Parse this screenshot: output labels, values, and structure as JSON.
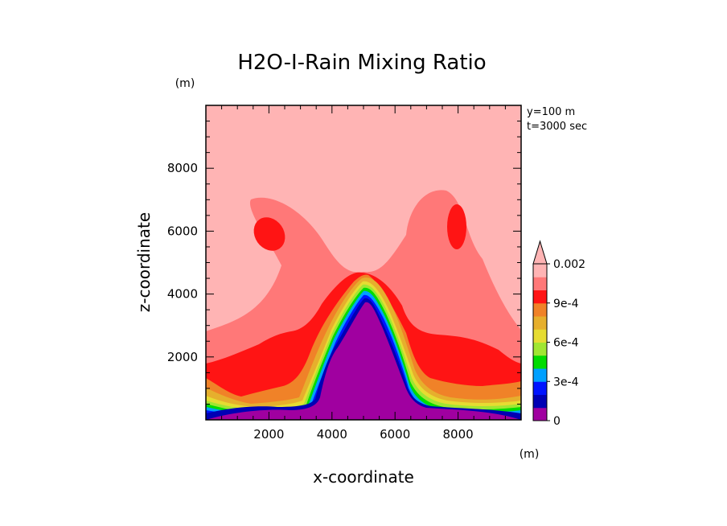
{
  "chart_data": {
    "type": "heatmap",
    "title": "H2O-I-Rain Mixing Ratio",
    "xlabel": "x-coordinate",
    "ylabel": "z-coordinate",
    "x_unit": "(m)",
    "y_unit": "(m)",
    "xlim": [
      0,
      10000
    ],
    "ylim": [
      0,
      10000
    ],
    "x_ticks": [
      2000,
      4000,
      6000,
      8000
    ],
    "y_ticks": [
      2000,
      4000,
      6000,
      8000
    ],
    "x_tick_labels": [
      "2000",
      "4000",
      "6000",
      "8000"
    ],
    "y_tick_labels": [
      "2000",
      "4000",
      "6000",
      "8000"
    ],
    "annotations": [
      "y=100 m",
      "t=3000 sec"
    ],
    "colorbar": {
      "levels": [
        0,
        0.0001,
        0.0002,
        0.0003,
        0.0004,
        0.0005,
        0.0006,
        0.0007,
        0.0008,
        0.0009,
        0.001,
        0.0015,
        0.002
      ],
      "colors": [
        "#a000a0",
        "#0000b4",
        "#0014ff",
        "#00a0ff",
        "#00dc00",
        "#a0e632",
        "#e6dc32",
        "#e6af2d",
        "#f08228",
        "#ff1414",
        "#ff7878",
        "#ffb4b4"
      ],
      "labels": [
        {
          "value": 0,
          "text": "0"
        },
        {
          "value": 0.0003,
          "text": "3e-4"
        },
        {
          "value": 0.0006,
          "text": "6e-4"
        },
        {
          "value": 0.0009,
          "text": "9e-4"
        },
        {
          "value": 0.002,
          "text": "0.002"
        }
      ],
      "extend": "max"
    }
  }
}
